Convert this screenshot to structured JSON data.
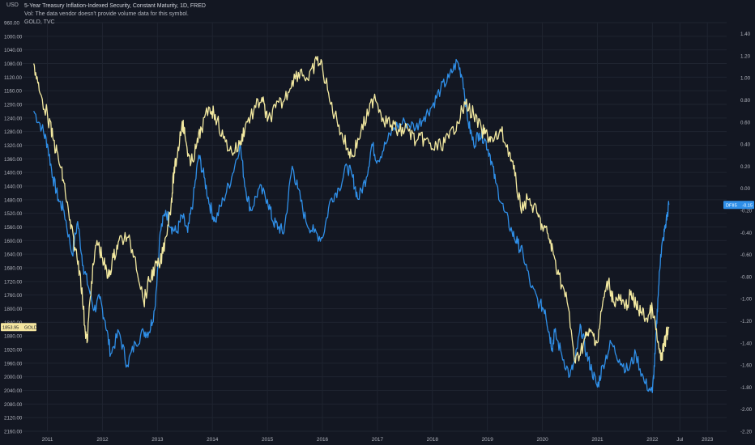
{
  "header": {
    "title": "5-Year Treasury Inflation-Indexed Security, Constant Maturity, 1D, FRED",
    "volume_note": "Vol: The data vendor doesn't provide volume data for this symbol.",
    "overlay_symbol": "GOLD, TVC"
  },
  "badges": {
    "dfii_symbol": "DFII5",
    "dfii_value": "-0.15",
    "gold_value": "1853.95",
    "gold_symbol": "GOLD"
  },
  "colors": {
    "background": "#131722",
    "grid": "#1f2430",
    "text": "#b2b5be",
    "dfii_line": "#2f8fe8",
    "gold_line": "#f3e9a0",
    "dfii_badge": "#2f8fe8",
    "gold_badge": "#f5e6a0"
  },
  "chart_data": {
    "type": "line",
    "title": "5-Year Treasury Inflation-Indexed Security, Constant Maturity, 1D, FRED",
    "x_ticks": [
      "2011",
      "2012",
      "2013",
      "2014",
      "2015",
      "2016",
      "2017",
      "2018",
      "2019",
      "2020",
      "2021",
      "2022",
      "Jul",
      "2023"
    ],
    "left_axis": {
      "unit": "USD",
      "inverted": true,
      "range": [
        960,
        2160
      ],
      "ticks": [
        "960.00",
        "1000.00",
        "1040.00",
        "1080.00",
        "1120.00",
        "1160.00",
        "1200.00",
        "1240.00",
        "1280.00",
        "1320.00",
        "1360.00",
        "1400.00",
        "1440.00",
        "1480.00",
        "1520.00",
        "1560.00",
        "1600.00",
        "1640.00",
        "1680.00",
        "1720.00",
        "1760.00",
        "1800.00",
        "1840.00",
        "1880.00",
        "1920.00",
        "1960.00",
        "2000.00",
        "2040.00",
        "2080.00",
        "2120.00",
        "2160.00"
      ]
    },
    "right_axis": {
      "range": [
        -2.2,
        1.5
      ],
      "ticks": [
        "1.40",
        "1.20",
        "1.00",
        "0.80",
        "0.60",
        "0.40",
        "0.20",
        "0.00",
        "-0.20",
        "-0.40",
        "-0.60",
        "-0.80",
        "-1.00",
        "-1.20",
        "-1.40",
        "-1.60",
        "-1.80",
        "-2.00",
        "-2.20"
      ]
    },
    "grid": true,
    "series": [
      {
        "name": "DFII5",
        "axis": "right",
        "x": [
          2010.75,
          2010.9,
          2011.0,
          2011.1,
          2011.2,
          2011.3,
          2011.45,
          2011.55,
          2011.65,
          2011.75,
          2011.85,
          2011.95,
          2012.05,
          2012.15,
          2012.3,
          2012.45,
          2012.6,
          2012.75,
          2012.85,
          2012.95,
          2013.05,
          2013.15,
          2013.25,
          2013.35,
          2013.45,
          2013.55,
          2013.65,
          2013.75,
          2013.85,
          2013.95,
          2014.05,
          2014.2,
          2014.35,
          2014.5,
          2014.6,
          2014.7,
          2014.85,
          2015.0,
          2015.1,
          2015.2,
          2015.3,
          2015.45,
          2015.55,
          2015.7,
          2015.85,
          2016.0,
          2016.15,
          2016.3,
          2016.45,
          2016.55,
          2016.65,
          2016.8,
          2016.9,
          2017.0,
          2017.15,
          2017.3,
          2017.5,
          2017.7,
          2017.85,
          2018.0,
          2018.15,
          2018.3,
          2018.45,
          2018.55,
          2018.65,
          2018.75,
          2018.85,
          2018.95,
          2019.05,
          2019.15,
          2019.3,
          2019.45,
          2019.55,
          2019.65,
          2019.8,
          2019.95,
          2020.05,
          2020.12,
          2020.18,
          2020.22,
          2020.35,
          2020.5,
          2020.6,
          2020.7,
          2020.8,
          2020.9,
          2021.0,
          2021.1,
          2021.25,
          2021.4,
          2021.55,
          2021.7,
          2021.85,
          2022.0,
          2022.05,
          2022.1,
          2022.15,
          2022.2,
          2022.25,
          2022.3
        ],
        "values": [
          0.7,
          0.55,
          0.4,
          0.1,
          -0.1,
          -0.2,
          -0.6,
          -0.3,
          -0.7,
          -0.9,
          -1.1,
          -1.0,
          -1.2,
          -1.5,
          -1.3,
          -1.6,
          -1.4,
          -1.3,
          -1.3,
          -1.1,
          -0.4,
          -0.2,
          -0.35,
          -0.4,
          -0.25,
          -0.4,
          -0.1,
          0.3,
          0.1,
          -0.15,
          -0.3,
          -0.1,
          0.1,
          0.4,
          0.0,
          -0.2,
          0.0,
          -0.1,
          -0.3,
          -0.35,
          -0.4,
          0.2,
          0.0,
          -0.3,
          -0.4,
          -0.45,
          -0.1,
          0.0,
          0.2,
          0.1,
          -0.1,
          0.1,
          0.4,
          0.25,
          0.4,
          0.55,
          0.6,
          0.55,
          0.65,
          0.75,
          0.9,
          1.0,
          1.15,
          1.0,
          0.6,
          0.4,
          0.5,
          0.45,
          0.3,
          0.05,
          -0.2,
          -0.4,
          -0.5,
          -0.6,
          -0.9,
          -1.05,
          -1.1,
          -1.3,
          -1.45,
          -1.3,
          -1.5,
          -1.7,
          -1.55,
          -1.25,
          -1.5,
          -1.65,
          -1.8,
          -1.6,
          -1.4,
          -1.55,
          -1.65,
          -1.5,
          -1.75,
          -1.85,
          -1.5,
          -1.0,
          -0.6,
          -0.45,
          -0.3,
          -0.15
        ]
      },
      {
        "name": "GOLD",
        "axis": "left",
        "x": [
          2010.75,
          2010.85,
          2011.0,
          2011.1,
          2011.2,
          2011.3,
          2011.4,
          2011.5,
          2011.6,
          2011.68,
          2011.72,
          2011.8,
          2011.9,
          2012.0,
          2012.1,
          2012.2,
          2012.3,
          2012.45,
          2012.6,
          2012.75,
          2012.85,
          2012.95,
          2013.05,
          2013.15,
          2013.25,
          2013.3,
          2013.35,
          2013.45,
          2013.5,
          2013.6,
          2013.7,
          2013.8,
          2013.95,
          2014.05,
          2014.2,
          2014.35,
          2014.5,
          2014.6,
          2014.75,
          2014.9,
          2015.0,
          2015.15,
          2015.3,
          2015.45,
          2015.6,
          2015.75,
          2015.9,
          2016.0,
          2016.15,
          2016.3,
          2016.45,
          2016.55,
          2016.7,
          2016.85,
          2016.95,
          2017.1,
          2017.25,
          2017.4,
          2017.55,
          2017.7,
          2017.85,
          2018.0,
          2018.15,
          2018.3,
          2018.45,
          2018.6,
          2018.75,
          2018.9,
          2019.0,
          2019.1,
          2019.25,
          2019.4,
          2019.5,
          2019.6,
          2019.75,
          2019.9,
          2020.0,
          2020.1,
          2020.2,
          2020.3,
          2020.45,
          2020.6,
          2020.7,
          2020.8,
          2020.9,
          2021.0,
          2021.1,
          2021.2,
          2021.3,
          2021.4,
          2021.5,
          2021.6,
          2021.7,
          2021.8,
          2021.9,
          2022.0,
          2022.1,
          2022.15,
          2022.2,
          2022.25,
          2022.3
        ],
        "values": [
          1080,
          1160,
          1230,
          1300,
          1360,
          1430,
          1540,
          1620,
          1700,
          1850,
          1900,
          1720,
          1600,
          1650,
          1710,
          1650,
          1600,
          1590,
          1650,
          1780,
          1720,
          1680,
          1670,
          1590,
          1490,
          1400,
          1360,
          1250,
          1290,
          1380,
          1330,
          1270,
          1210,
          1230,
          1300,
          1340,
          1320,
          1260,
          1220,
          1180,
          1250,
          1210,
          1190,
          1130,
          1100,
          1130,
          1070,
          1090,
          1200,
          1260,
          1330,
          1350,
          1280,
          1220,
          1170,
          1240,
          1260,
          1280,
          1270,
          1310,
          1300,
          1330,
          1320,
          1300,
          1250,
          1200,
          1230,
          1280,
          1290,
          1310,
          1280,
          1340,
          1410,
          1500,
          1480,
          1520,
          1560,
          1580,
          1640,
          1700,
          1780,
          1960,
          1920,
          1880,
          1870,
          1900,
          1780,
          1720,
          1780,
          1770,
          1800,
          1760,
          1790,
          1810,
          1830,
          1800,
          1900,
          1950,
          1920,
          1880,
          1853.95
        ]
      }
    ]
  }
}
